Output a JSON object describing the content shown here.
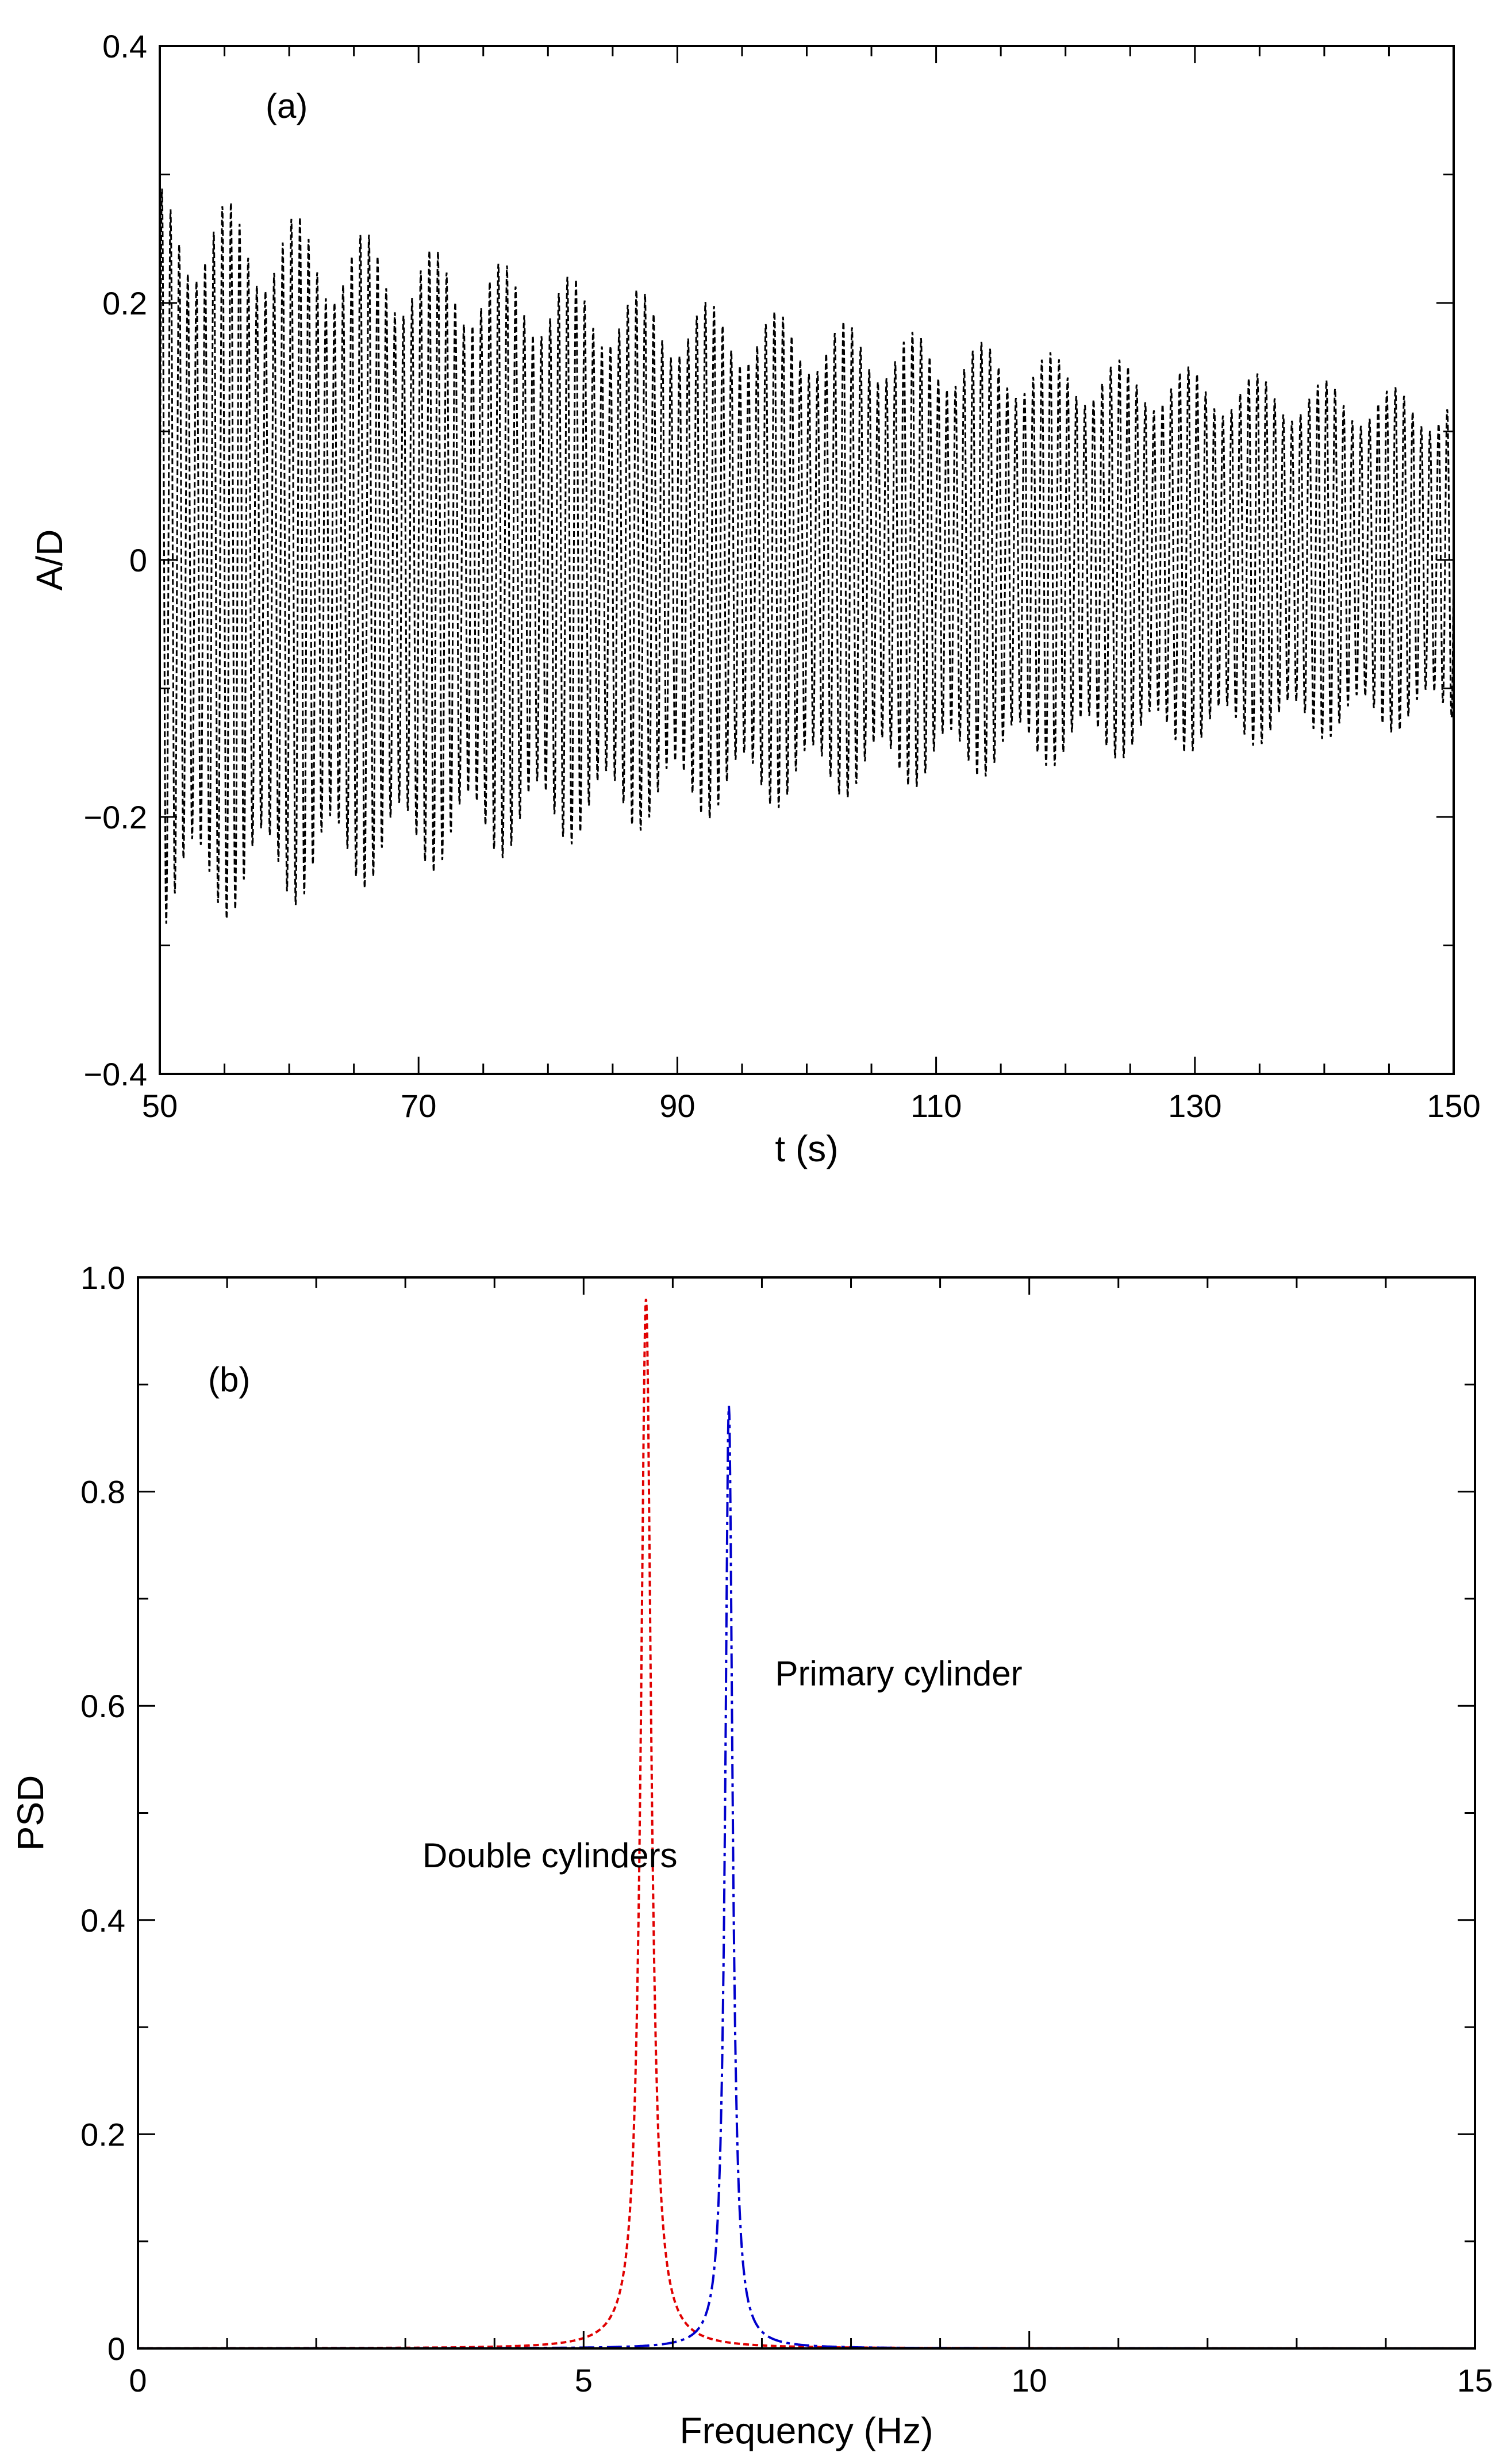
{
  "chart_data": [
    {
      "panel": "(a)",
      "type": "line",
      "title": "",
      "xlabel": "t (s)",
      "ylabel": "A/D",
      "xlim": [
        50,
        150
      ],
      "ylim": [
        -0.4,
        0.4
      ],
      "x_ticks": [
        50,
        70,
        90,
        110,
        130,
        150
      ],
      "x_tick_labels": [
        "50",
        "70",
        "90",
        "110",
        "130",
        "150"
      ],
      "y_ticks": [
        -0.4,
        -0.2,
        0,
        0.2,
        0.4
      ],
      "y_tick_labels": [
        "−0.4",
        "−0.2",
        "0",
        "0.2",
        "0.4"
      ],
      "line_color": "#000000",
      "line_style": "dashed",
      "series": [
        {
          "name": "A/D",
          "description": "decaying oscillation envelope",
          "envelope_t": [
            50,
            55,
            60,
            70,
            80,
            90,
            100,
            110,
            120,
            130,
            140,
            150
          ],
          "envelope_amplitude": [
            0.29,
            0.28,
            0.27,
            0.245,
            0.225,
            0.205,
            0.19,
            0.175,
            0.16,
            0.15,
            0.14,
            0.13
          ],
          "beat_period_s": 5.3,
          "carrier_cycles_shown": 150
        }
      ]
    },
    {
      "panel": "(b)",
      "type": "line",
      "title": "",
      "xlabel": "Frequency (Hz)",
      "ylabel": "PSD",
      "xlim": [
        0,
        15
      ],
      "ylim": [
        0,
        1.0
      ],
      "x_ticks": [
        0,
        5,
        10,
        15
      ],
      "x_tick_labels": [
        "0",
        "5",
        "10",
        "15"
      ],
      "y_ticks": [
        0,
        0.2,
        0.4,
        0.6,
        0.8,
        1.0
      ],
      "y_tick_labels": [
        "0",
        "0.2",
        "0.4",
        "0.6",
        "0.8",
        "1.0"
      ],
      "series": [
        {
          "name": "Double cylinders",
          "color": "#e00000",
          "line_style": "dotted",
          "peak_frequency": 5.7,
          "peak_value": 0.98,
          "half_width_hz": 0.07
        },
        {
          "name": "Primary cylinder",
          "color": "#0000cc",
          "line_style": "dash-dot",
          "peak_frequency": 6.63,
          "peak_value": 0.88,
          "half_width_hz": 0.05
        }
      ],
      "annotations": [
        {
          "text": "Double cylinders",
          "x": 4.3,
          "y": 0.46
        },
        {
          "text": "Primary cylinder",
          "x": 8.6,
          "y": 0.63
        }
      ]
    }
  ]
}
